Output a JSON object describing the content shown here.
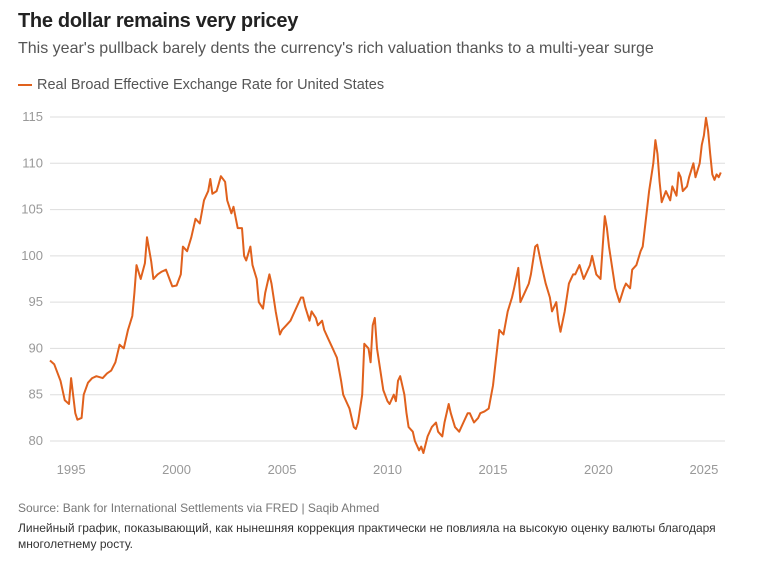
{
  "header": {
    "title": "The dollar remains very pricey",
    "subtitle": "This year's pullback barely dents the currency's rich valuation thanks to a multi-year surge"
  },
  "footer": {
    "source": "Source: Bank for International Settlements via FRED | Saqib Ahmed",
    "alt_text": "Линейный график, показывающий, как нынешняя коррекция практически не повлияла на высокую оценку валюты благодаря многолетнему росту."
  },
  "colors": {
    "line": "#e0611d",
    "grid": "#dddddd",
    "axis_text": "#999999"
  },
  "chart_data": {
    "type": "line",
    "title": "The dollar remains very pricey",
    "xlabel": "",
    "ylabel": "",
    "legend_position": "top-left",
    "ylim": [
      78,
      115
    ],
    "xlim": [
      1994.0,
      2025.8
    ],
    "grid": true,
    "y_ticks": [
      80,
      85,
      90,
      95,
      100,
      105,
      110,
      115
    ],
    "x_ticks": [
      1995,
      2000,
      2005,
      2010,
      2015,
      2020,
      2025
    ],
    "series": [
      {
        "name": "Real Broad Effective Exchange Rate for United States",
        "points": [
          [
            1994.0,
            88.7
          ],
          [
            1994.2,
            88.3
          ],
          [
            1994.5,
            86.5
          ],
          [
            1994.7,
            84.4
          ],
          [
            1994.9,
            84.0
          ],
          [
            1995.0,
            86.8
          ],
          [
            1995.2,
            83.0
          ],
          [
            1995.3,
            82.3
          ],
          [
            1995.5,
            82.5
          ],
          [
            1995.6,
            85.0
          ],
          [
            1995.8,
            86.3
          ],
          [
            1996.0,
            86.8
          ],
          [
            1996.2,
            87.0
          ],
          [
            1996.5,
            86.8
          ],
          [
            1996.7,
            87.3
          ],
          [
            1996.9,
            87.6
          ],
          [
            1997.1,
            88.5
          ],
          [
            1997.3,
            90.4
          ],
          [
            1997.5,
            90.0
          ],
          [
            1997.7,
            92.0
          ],
          [
            1997.9,
            93.5
          ],
          [
            1998.0,
            96.0
          ],
          [
            1998.1,
            99.0
          ],
          [
            1998.3,
            97.5
          ],
          [
            1998.5,
            99.2
          ],
          [
            1998.6,
            102.0
          ],
          [
            1998.8,
            99.4
          ],
          [
            1998.9,
            97.5
          ],
          [
            1999.1,
            98.0
          ],
          [
            1999.3,
            98.3
          ],
          [
            1999.5,
            98.5
          ],
          [
            1999.7,
            97.3
          ],
          [
            1999.8,
            96.7
          ],
          [
            2000.0,
            96.8
          ],
          [
            2000.2,
            98.0
          ],
          [
            2000.3,
            101.0
          ],
          [
            2000.5,
            100.5
          ],
          [
            2000.7,
            102.0
          ],
          [
            2000.9,
            104.0
          ],
          [
            2001.1,
            103.5
          ],
          [
            2001.3,
            106.0
          ],
          [
            2001.5,
            107.0
          ],
          [
            2001.6,
            108.3
          ],
          [
            2001.7,
            106.7
          ],
          [
            2001.9,
            107.0
          ],
          [
            2002.0,
            107.8
          ],
          [
            2002.1,
            108.6
          ],
          [
            2002.3,
            108.0
          ],
          [
            2002.4,
            106.0
          ],
          [
            2002.6,
            104.6
          ],
          [
            2002.7,
            105.3
          ],
          [
            2002.9,
            103.0
          ],
          [
            2003.1,
            103.0
          ],
          [
            2003.2,
            100.0
          ],
          [
            2003.3,
            99.5
          ],
          [
            2003.5,
            101.0
          ],
          [
            2003.6,
            99.0
          ],
          [
            2003.8,
            97.5
          ],
          [
            2003.9,
            95.0
          ],
          [
            2004.1,
            94.3
          ],
          [
            2004.2,
            96.0
          ],
          [
            2004.4,
            98.0
          ],
          [
            2004.5,
            97.0
          ],
          [
            2004.7,
            94.0
          ],
          [
            2004.9,
            91.5
          ],
          [
            2005.0,
            92.0
          ],
          [
            2005.2,
            92.5
          ],
          [
            2005.4,
            93.0
          ],
          [
            2005.6,
            94.0
          ],
          [
            2005.8,
            95.0
          ],
          [
            2005.9,
            95.5
          ],
          [
            2006.0,
            95.5
          ],
          [
            2006.1,
            94.5
          ],
          [
            2006.3,
            93.0
          ],
          [
            2006.4,
            94.0
          ],
          [
            2006.6,
            93.3
          ],
          [
            2006.7,
            92.5
          ],
          [
            2006.9,
            93.0
          ],
          [
            2007.0,
            92.0
          ],
          [
            2007.2,
            91.0
          ],
          [
            2007.4,
            90.0
          ],
          [
            2007.5,
            89.5
          ],
          [
            2007.6,
            89.0
          ],
          [
            2007.8,
            86.5
          ],
          [
            2007.9,
            85.0
          ],
          [
            2008.1,
            84.0
          ],
          [
            2008.2,
            83.5
          ],
          [
            2008.4,
            81.5
          ],
          [
            2008.5,
            81.3
          ],
          [
            2008.6,
            82.0
          ],
          [
            2008.8,
            85.0
          ],
          [
            2008.9,
            90.5
          ],
          [
            2009.1,
            90.0
          ],
          [
            2009.2,
            88.5
          ],
          [
            2009.3,
            92.5
          ],
          [
            2009.4,
            93.3
          ],
          [
            2009.5,
            90.0
          ],
          [
            2009.7,
            87.0
          ],
          [
            2009.8,
            85.5
          ],
          [
            2010.0,
            84.3
          ],
          [
            2010.1,
            84.0
          ],
          [
            2010.3,
            85.0
          ],
          [
            2010.4,
            84.3
          ],
          [
            2010.5,
            86.5
          ],
          [
            2010.6,
            87.0
          ],
          [
            2010.8,
            85.0
          ],
          [
            2010.9,
            83.0
          ],
          [
            2011.0,
            81.5
          ],
          [
            2011.2,
            81.0
          ],
          [
            2011.3,
            80.0
          ],
          [
            2011.5,
            79.0
          ],
          [
            2011.6,
            79.4
          ],
          [
            2011.7,
            78.7
          ],
          [
            2011.9,
            80.5
          ],
          [
            2012.1,
            81.5
          ],
          [
            2012.3,
            82.0
          ],
          [
            2012.4,
            81.0
          ],
          [
            2012.6,
            80.5
          ],
          [
            2012.7,
            82.0
          ],
          [
            2012.9,
            84.0
          ],
          [
            2013.0,
            83.0
          ],
          [
            2013.2,
            81.5
          ],
          [
            2013.4,
            81.0
          ],
          [
            2013.6,
            82.0
          ],
          [
            2013.8,
            83.0
          ],
          [
            2013.9,
            83.0
          ],
          [
            2014.1,
            82.0
          ],
          [
            2014.3,
            82.5
          ],
          [
            2014.4,
            83.0
          ],
          [
            2014.6,
            83.2
          ],
          [
            2014.8,
            83.5
          ],
          [
            2015.0,
            86.0
          ],
          [
            2015.1,
            88.0
          ],
          [
            2015.3,
            92.0
          ],
          [
            2015.5,
            91.5
          ],
          [
            2015.7,
            94.0
          ],
          [
            2015.9,
            95.5
          ],
          [
            2016.0,
            96.5
          ],
          [
            2016.2,
            98.7
          ],
          [
            2016.3,
            95.0
          ],
          [
            2016.5,
            96.0
          ],
          [
            2016.7,
            97.0
          ],
          [
            2016.8,
            98.0
          ],
          [
            2017.0,
            101.0
          ],
          [
            2017.1,
            101.2
          ],
          [
            2017.3,
            99.0
          ],
          [
            2017.5,
            97.0
          ],
          [
            2017.7,
            95.5
          ],
          [
            2017.8,
            94.0
          ],
          [
            2018.0,
            95.0
          ],
          [
            2018.1,
            93.0
          ],
          [
            2018.2,
            91.8
          ],
          [
            2018.4,
            94.0
          ],
          [
            2018.6,
            97.0
          ],
          [
            2018.8,
            98.0
          ],
          [
            2018.9,
            98.0
          ],
          [
            2019.1,
            99.0
          ],
          [
            2019.3,
            97.5
          ],
          [
            2019.4,
            98.0
          ],
          [
            2019.6,
            99.0
          ],
          [
            2019.7,
            100.0
          ],
          [
            2019.9,
            98.0
          ],
          [
            2020.1,
            97.5
          ],
          [
            2020.2,
            101.0
          ],
          [
            2020.3,
            104.3
          ],
          [
            2020.4,
            103.0
          ],
          [
            2020.5,
            101.0
          ],
          [
            2020.7,
            98.0
          ],
          [
            2020.8,
            96.5
          ],
          [
            2021.0,
            95.0
          ],
          [
            2021.2,
            96.5
          ],
          [
            2021.3,
            97.0
          ],
          [
            2021.5,
            96.5
          ],
          [
            2021.6,
            98.5
          ],
          [
            2021.8,
            99.0
          ],
          [
            2022.0,
            100.5
          ],
          [
            2022.1,
            101.0
          ],
          [
            2022.3,
            105.0
          ],
          [
            2022.4,
            107.0
          ],
          [
            2022.6,
            110.0
          ],
          [
            2022.7,
            112.5
          ],
          [
            2022.8,
            111.0
          ],
          [
            2022.9,
            108.0
          ],
          [
            2023.0,
            105.8
          ],
          [
            2023.2,
            107.0
          ],
          [
            2023.4,
            106.0
          ],
          [
            2023.5,
            107.5
          ],
          [
            2023.7,
            106.5
          ],
          [
            2023.8,
            109.0
          ],
          [
            2023.9,
            108.5
          ],
          [
            2024.0,
            107.0
          ],
          [
            2024.2,
            107.5
          ],
          [
            2024.3,
            108.5
          ],
          [
            2024.5,
            110.0
          ],
          [
            2024.6,
            108.5
          ],
          [
            2024.8,
            110.0
          ],
          [
            2024.9,
            112.0
          ],
          [
            2025.0,
            113.0
          ],
          [
            2025.1,
            114.9
          ],
          [
            2025.2,
            113.5
          ],
          [
            2025.3,
            111.0
          ],
          [
            2025.4,
            108.8
          ],
          [
            2025.5,
            108.2
          ],
          [
            2025.6,
            108.8
          ],
          [
            2025.7,
            108.5
          ],
          [
            2025.8,
            109.0
          ]
        ]
      }
    ]
  }
}
